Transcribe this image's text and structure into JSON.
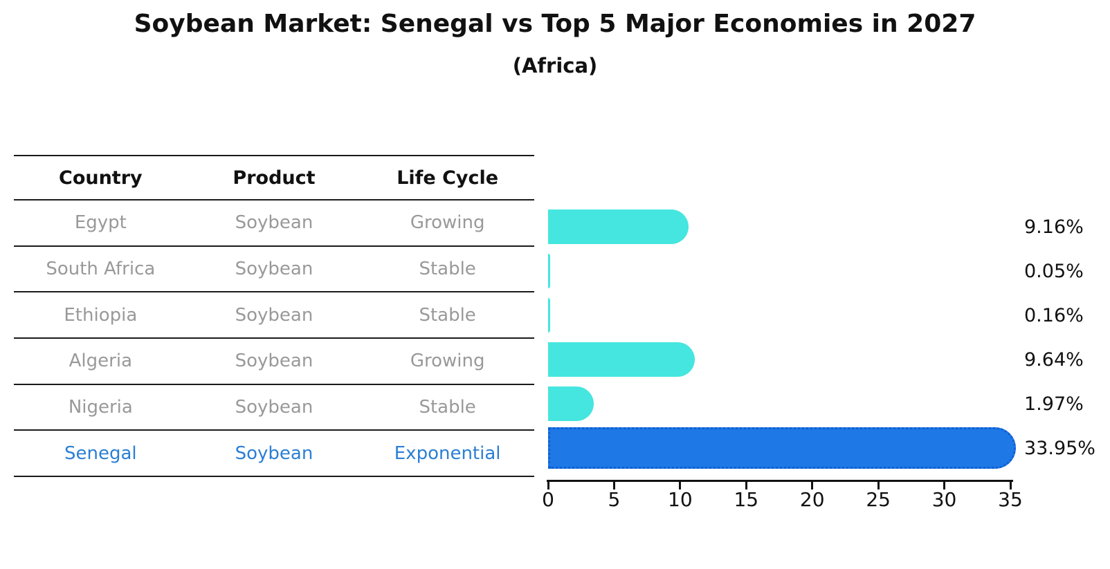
{
  "title": "Soybean Market: Senegal vs Top 5 Major Economies in 2027",
  "subtitle": "(Africa)",
  "table": {
    "headers": [
      "Country",
      "Product",
      "Life Cycle"
    ],
    "rows": [
      {
        "country": "Egypt",
        "product": "Soybean",
        "life_cycle": "Growing",
        "highlight": false
      },
      {
        "country": "South Africa",
        "product": "Soybean",
        "life_cycle": "Stable",
        "highlight": false
      },
      {
        "country": "Ethiopia",
        "product": "Soybean",
        "life_cycle": "Stable",
        "highlight": false
      },
      {
        "country": "Algeria",
        "product": "Soybean",
        "life_cycle": "Growing",
        "highlight": false
      },
      {
        "country": "Nigeria",
        "product": "Soybean",
        "life_cycle": "Stable",
        "highlight": false
      },
      {
        "country": "Senegal",
        "product": "Soybean",
        "life_cycle": "Exponential",
        "highlight": true
      }
    ]
  },
  "chart_data": {
    "type": "bar",
    "orientation": "horizontal",
    "title": "Soybean Market: Senegal vs Top 5 Major Economies in 2027",
    "subtitle": "(Africa)",
    "categories": [
      "Egypt",
      "South Africa",
      "Ethiopia",
      "Algeria",
      "Nigeria",
      "Senegal"
    ],
    "values": [
      9.16,
      0.05,
      0.16,
      9.64,
      1.97,
      33.95
    ],
    "value_labels": [
      "9.16%",
      "0.05%",
      "0.16%",
      "9.64%",
      "1.97%",
      "33.95%"
    ],
    "xlim": [
      0,
      35
    ],
    "xticks": [
      0,
      5,
      10,
      15,
      20,
      25,
      30,
      35
    ],
    "grid": false,
    "legend": false,
    "highlight_index": 5,
    "colors": {
      "bar_default": "#45E6DF",
      "bar_highlight": "#1E78E6",
      "bar_highlight_edge": "#0E5FD0",
      "highlight_text": "#2B7FD4",
      "cell_text": "#999999",
      "header_text": "#111111",
      "axis_text": "#111111"
    }
  }
}
